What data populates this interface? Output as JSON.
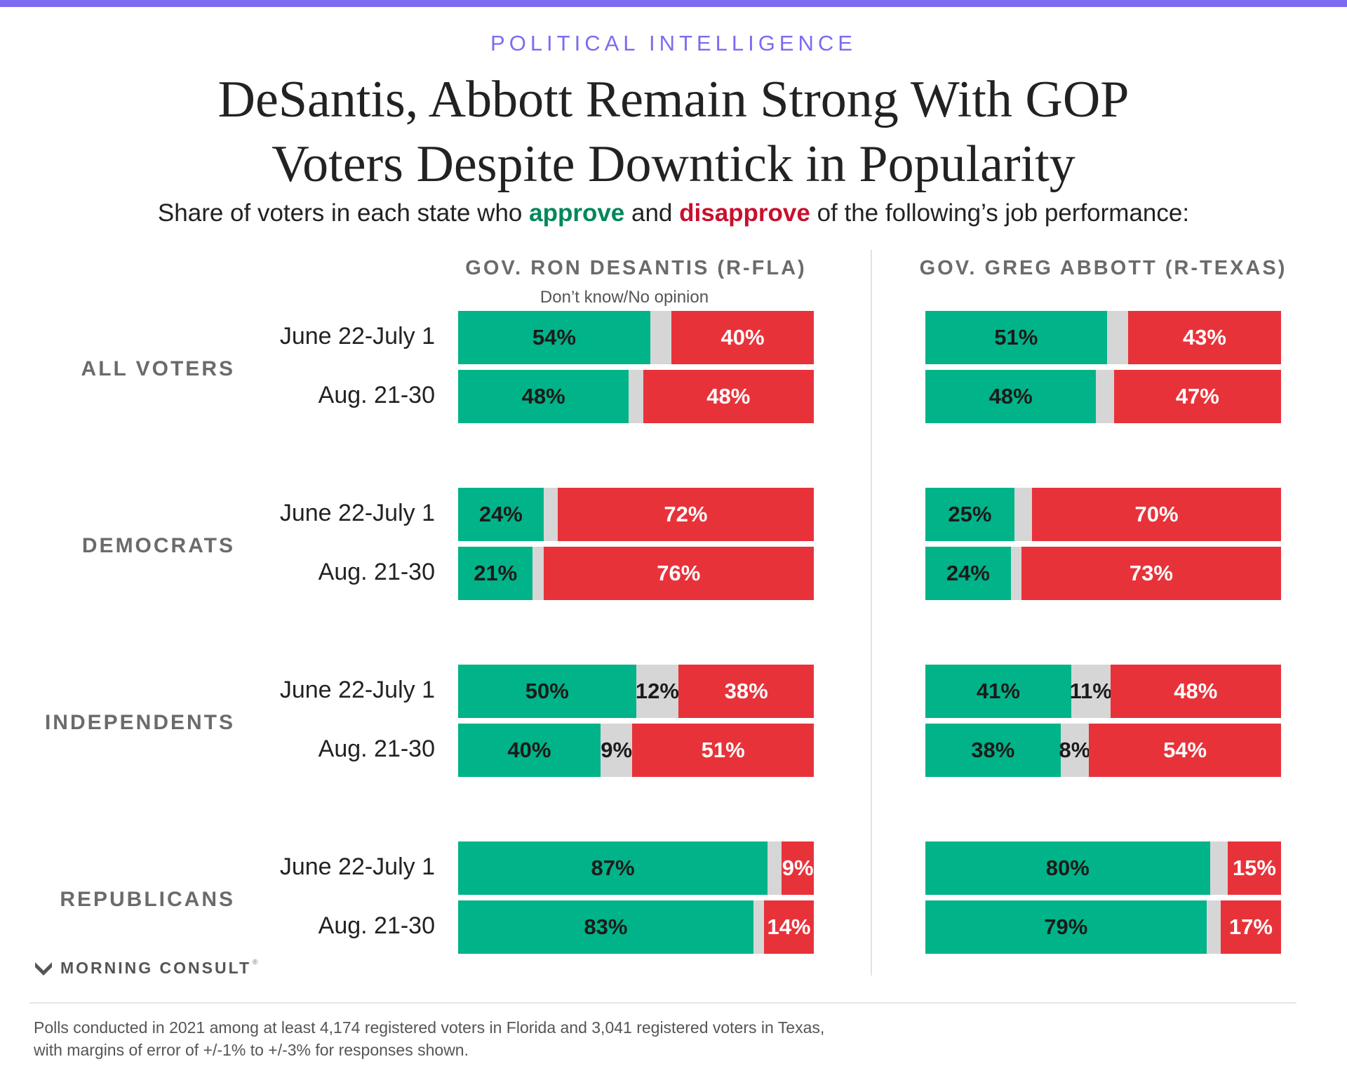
{
  "kicker": "POLITICAL INTELLIGENCE",
  "title_line1": "DeSantis, Abbott Remain Strong With GOP",
  "title_line2": "Voters Despite Downtick in Popularity",
  "subtitle": {
    "before": "Share of voters in each state who ",
    "approve": "approve",
    "middle": " and ",
    "disapprove": "disapprove",
    "after": " of the following’s job performance:"
  },
  "colors": {
    "approve": "#00b388",
    "neutral": "#d6d6d6",
    "disapprove": "#e8323a",
    "accent": "#7b6cf2"
  },
  "brand": {
    "name": "MORNING CONSULT",
    "tm": "®",
    "icon": "morning-consult-logo-icon"
  },
  "footnote_line1": "Polls conducted in 2021 among at least 4,174 registered voters in Florida and 3,041 registered voters in Texas,",
  "footnote_line2": "with margins of error of +/-1% to +/-3% for responses shown.",
  "chart_data": {
    "type": "bar",
    "stacked": true,
    "orientation": "horizontal",
    "segments": [
      "approve",
      "neutral",
      "disapprove"
    ],
    "neutral_label": "Don’t know/No opinion",
    "groups": [
      "ALL VOTERS",
      "DEMOCRATS",
      "INDEPENDENTS",
      "REPUBLICANS"
    ],
    "periods": [
      "June 22-July 1",
      "Aug. 21-30"
    ],
    "panels": [
      {
        "title": "GOV. RON DESANTIS (R-FLA)",
        "data": [
          [
            {
              "approve": 54,
              "neutral": 6,
              "disapprove": 40,
              "neutral_label": ""
            },
            {
              "approve": 48,
              "neutral": 4,
              "disapprove": 48,
              "neutral_label": ""
            }
          ],
          [
            {
              "approve": 24,
              "neutral": 4,
              "disapprove": 72,
              "neutral_label": ""
            },
            {
              "approve": 21,
              "neutral": 3,
              "disapprove": 76,
              "neutral_label": ""
            }
          ],
          [
            {
              "approve": 50,
              "neutral": 12,
              "disapprove": 38,
              "neutral_label": "12%"
            },
            {
              "approve": 40,
              "neutral": 9,
              "disapprove": 51,
              "neutral_label": "9%"
            }
          ],
          [
            {
              "approve": 87,
              "neutral": 4,
              "disapprove": 9,
              "neutral_label": ""
            },
            {
              "approve": 83,
              "neutral": 3,
              "disapprove": 14,
              "neutral_label": ""
            }
          ]
        ]
      },
      {
        "title": "GOV. GREG ABBOTT (R-TEXAS)",
        "data": [
          [
            {
              "approve": 51,
              "neutral": 6,
              "disapprove": 43,
              "neutral_label": ""
            },
            {
              "approve": 48,
              "neutral": 5,
              "disapprove": 47,
              "neutral_label": ""
            }
          ],
          [
            {
              "approve": 25,
              "neutral": 5,
              "disapprove": 70,
              "neutral_label": ""
            },
            {
              "approve": 24,
              "neutral": 3,
              "disapprove": 73,
              "neutral_label": ""
            }
          ],
          [
            {
              "approve": 41,
              "neutral": 11,
              "disapprove": 48,
              "neutral_label": "11%"
            },
            {
              "approve": 38,
              "neutral": 8,
              "disapprove": 54,
              "neutral_label": "8%"
            }
          ],
          [
            {
              "approve": 80,
              "neutral": 5,
              "disapprove": 15,
              "neutral_label": ""
            },
            {
              "approve": 79,
              "neutral": 4,
              "disapprove": 17,
              "neutral_label": ""
            }
          ]
        ]
      }
    ]
  }
}
